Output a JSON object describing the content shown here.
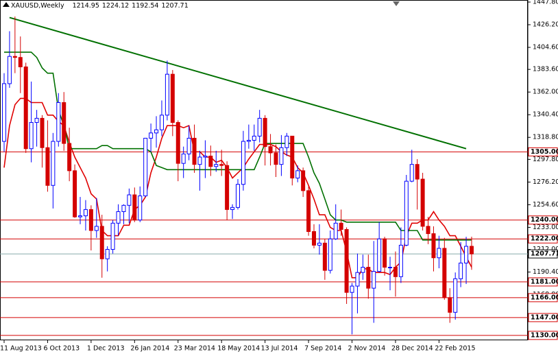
{
  "chart_data": {
    "type": "candlestick",
    "title": "XAUUSD,Weekly",
    "categories": [
      "11 Aug 2013",
      null,
      null,
      null,
      null,
      null,
      null,
      null,
      "6 Oct 2013",
      null,
      null,
      null,
      null,
      null,
      null,
      null,
      "1 Dec 2013",
      null,
      null,
      null,
      null,
      null,
      null,
      null,
      "26 Jan 2014",
      null,
      null,
      null,
      null,
      null,
      null,
      null,
      "23 Mar 2014",
      null,
      null,
      null,
      null,
      null,
      null,
      null,
      "18 May 2014",
      null,
      null,
      null,
      null,
      null,
      null,
      null,
      "13 Jul 2014",
      null,
      null,
      null,
      null,
      null,
      null,
      null,
      "7 Sep 2014",
      null,
      null,
      null,
      null,
      null,
      null,
      null,
      "2 Nov 2014",
      null,
      null,
      null,
      null,
      null,
      null,
      null,
      "28 Dec 2014",
      null,
      null,
      null,
      null,
      null,
      null,
      null,
      "22 Feb 2015",
      null,
      null,
      null,
      null,
      null,
      null
    ],
    "open": [
      1315,
      1370,
      1396,
      1395,
      1386,
      1308,
      1333,
      1337,
      1309,
      1273,
      1315,
      1352,
      1313,
      1287,
      1243,
      1244,
      1250,
      1230,
      1234,
      1203,
      1212,
      1237,
      1248,
      1254,
      1264,
      1240,
      1263,
      1318,
      1323,
      1326,
      1340,
      1379,
      1333,
      1294,
      1303,
      1318,
      1293,
      1300,
      1301,
      1291,
      1293,
      1292,
      1250,
      1252,
      1274,
      1315,
      1316,
      1320,
      1337,
      1310,
      1304,
      1293,
      1309,
      1320,
      1280,
      1287,
      1268,
      1229,
      1216,
      1218,
      1192,
      1222,
      1237,
      1231,
      1171,
      1177,
      1190,
      1195,
      1175,
      1191,
      1222,
      1195,
      1195,
      1186,
      1216,
      1277,
      1293,
      1279,
      1234,
      1227,
      1204,
      1213,
      1166,
      1152,
      1184,
      1199,
      1214.95
    ],
    "high": [
      1380,
      1420,
      1434,
      1415,
      1390,
      1372,
      1345,
      1340,
      1335,
      1323,
      1361,
      1362,
      1328,
      1293,
      1262,
      1259,
      1254,
      1261,
      1245,
      1215,
      1240,
      1255,
      1255,
      1270,
      1271,
      1272,
      1318,
      1332,
      1339,
      1354,
      1392,
      1383,
      1335,
      1310,
      1330,
      1331,
      1306,
      1316,
      1311,
      1306,
      1307,
      1296,
      1255,
      1279,
      1325,
      1331,
      1331,
      1345,
      1340,
      1322,
      1312,
      1321,
      1323,
      1320,
      1292,
      1290,
      1272,
      1236,
      1236,
      1222,
      1230,
      1255,
      1250,
      1233,
      1180,
      1208,
      1207,
      1207,
      1220,
      1238,
      1224,
      1205,
      1210,
      1233,
      1283,
      1307,
      1298,
      1285,
      1243,
      1234,
      1225,
      1223,
      1175,
      1190,
      1219,
      1224,
      1224.12
    ],
    "low": [
      1305,
      1366,
      1380,
      1361,
      1304,
      1295,
      1310,
      1290,
      1267,
      1251,
      1310,
      1306,
      1277,
      1242,
      1236,
      1230,
      1211,
      1223,
      1185,
      1191,
      1208,
      1225,
      1236,
      1237,
      1238,
      1238,
      1262,
      1305,
      1309,
      1320,
      1335,
      1320,
      1277,
      1280,
      1297,
      1285,
      1268,
      1280,
      1282,
      1286,
      1282,
      1240,
      1241,
      1250,
      1268,
      1308,
      1306,
      1314,
      1292,
      1292,
      1281,
      1282,
      1301,
      1273,
      1276,
      1262,
      1225,
      1213,
      1207,
      1183,
      1189,
      1221,
      1225,
      1160,
      1131,
      1151,
      1183,
      1165,
      1142,
      1190,
      1187,
      1173,
      1167,
      1180,
      1215,
      1276,
      1250,
      1230,
      1217,
      1191,
      1194,
      1164,
      1142,
      1145,
      1176,
      1179,
      1192.54
    ],
    "close": [
      1370,
      1396,
      1395,
      1386,
      1308,
      1333,
      1337,
      1309,
      1273,
      1315,
      1352,
      1313,
      1287,
      1243,
      1244,
      1250,
      1230,
      1234,
      1203,
      1212,
      1237,
      1248,
      1254,
      1264,
      1240,
      1263,
      1318,
      1323,
      1326,
      1340,
      1379,
      1333,
      1294,
      1303,
      1318,
      1293,
      1300,
      1301,
      1291,
      1293,
      1292,
      1250,
      1252,
      1274,
      1315,
      1316,
      1320,
      1337,
      1310,
      1304,
      1293,
      1309,
      1320,
      1280,
      1287,
      1268,
      1229,
      1216,
      1218,
      1192,
      1222,
      1237,
      1231,
      1171,
      1177,
      1190,
      1195,
      1175,
      1191,
      1222,
      1195,
      1195,
      1186,
      1216,
      1277,
      1293,
      1279,
      1234,
      1227,
      1204,
      1213,
      1166,
      1152,
      1184,
      1199,
      1214.95,
      1207.71
    ],
    "up_color": "#0000ff",
    "down_color": "#d40000",
    "indicators": [
      {
        "color": "#e00000",
        "values": [
          1290,
          1330,
          1350,
          1356,
          1356,
          1352,
          1352,
          1352,
          1340,
          1340,
          1334,
          1330,
          1314,
          1300,
          1290,
          1280,
          1265,
          1260,
          1230,
          1225,
          1225,
          1225,
          1235,
          1235,
          1250,
          1254,
          1262,
          1285,
          1300,
          1318,
          1330,
          1330,
          1330,
          1328,
          1330,
          1305,
          1305,
          1300,
          1300,
          1295,
          1297,
          1290,
          1280,
          1285,
          1290,
          1298,
          1305,
          1312,
          1312,
          1312,
          1310,
          1305,
          1302,
          1300,
          1290,
          1285,
          1273,
          1260,
          1245,
          1245,
          1233,
          1230,
          1230,
          1210,
          1185,
          1185,
          1194,
          1193,
          1190,
          1190,
          1190,
          1188,
          1195,
          1200,
          1225,
          1237,
          1237,
          1240,
          1240,
          1248,
          1240,
          1234,
          1225,
          1225,
          1215,
          1205,
          1195
        ]
      },
      {
        "color": "#007000",
        "values": [
          1400,
          1400,
          1400,
          1400,
          1400,
          1400,
          1395,
          1385,
          1380,
          1380,
          1345,
          1330,
          1308,
          1308,
          1308,
          1308,
          1308,
          1308,
          1311,
          1311,
          1308,
          1308,
          1308,
          1308,
          1308,
          1308,
          1308,
          1305,
          1292,
          1290,
          1288,
          1288,
          1288,
          1288,
          1288,
          1288,
          1288,
          1288,
          1288,
          1288,
          1288,
          1288,
          1288,
          1288,
          1288,
          1288,
          1288,
          1300,
          1313,
          1313,
          1313,
          1313,
          1313,
          1313,
          1313,
          1313,
          1300,
          1285,
          1275,
          1260,
          1245,
          1240,
          1240,
          1238,
          1238,
          1238,
          1238,
          1238,
          1238,
          1238,
          1238,
          1238,
          1238,
          1230,
          1230,
          1230,
          1230,
          1221,
          1221,
          1221,
          1221,
          1221,
          1221,
          1221,
          1221,
          1221,
          1221
        ]
      }
    ],
    "trendline": {
      "x": [
        1,
        85
      ],
      "values": [
        1433,
        1308
      ],
      "color": "#007000"
    },
    "levels": [
      {
        "value": 1305,
        "label": "1305.00"
      },
      {
        "value": 1240,
        "label": "1240.00"
      },
      {
        "value": 1222,
        "label": "1222.00"
      },
      {
        "value": 1181,
        "label": "1181.00"
      },
      {
        "value": 1166,
        "label": "1166.00"
      },
      {
        "value": 1147,
        "label": "1147.00"
      },
      {
        "value": 1130,
        "label": "1130.00"
      }
    ],
    "level_color": "#d40000",
    "ylim": [
      1126,
      1447.8
    ],
    "yticks": [
      {
        "value": 1447.8,
        "label": "1447.80"
      },
      {
        "value": 1426.2,
        "label": "1426.20"
      },
      {
        "value": 1404.6,
        "label": "1404.60"
      },
      {
        "value": 1383.6,
        "label": "1383.60"
      },
      {
        "value": 1362,
        "label": "1362.00"
      },
      {
        "value": 1340.4,
        "label": "1340.40"
      },
      {
        "value": 1318.8,
        "label": "1318.80"
      },
      {
        "value": 1297.8,
        "label": "1297.80"
      },
      {
        "value": 1276.2,
        "label": "1276.20"
      },
      {
        "value": 1254.6,
        "label": "1254.60"
      },
      {
        "value": 1233,
        "label": "1233.00"
      },
      {
        "value": 1212,
        "label": "1212.00"
      },
      {
        "value": 1190.4,
        "label": "1190.40"
      },
      {
        "value": 1168.8,
        "label": "1168.80"
      }
    ]
  }
}
